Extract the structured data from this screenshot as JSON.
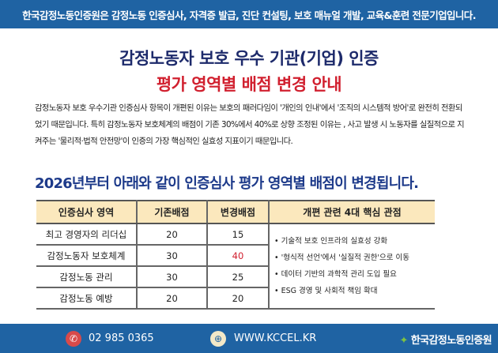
{
  "topbar": {
    "text": "한국감정노동인증원은 감정노동 인증심사, 자격증 발급, 진단 컨설팅, 보호 매뉴얼 개발, 교육&훈련 전문기업입니다."
  },
  "title": "감정노동자 보호 우수 기관(기업) 인증",
  "subtitle": "평가 영역별 배점 변경 안내",
  "paragraph": "감정노동자 보호 우수기관 인증심사 항목이 개편된 이유는 보호의 패러다임이 '개인의 인내'에서 '조직의 시스템적 방어'로 완전히 전환되었기 때문입니다. 특히 감정노동자 보호체계의 배점이 기존 30%에서 40%로 상향 조정된 이유는 , 사고 발생 시 노동자를 실질적으로 지켜주는 '물리적·법적 안전망'이 인증의 가장 핵심적인 실효성 지표이기 때문입니다.",
  "headline": "2026년부터 아래와 같이 인증심사 평가 영역별 배점이 변경됩니다.",
  "table": {
    "headers": [
      "인증심사 영역",
      "기존배점",
      "변경배점",
      "개편 관련 4대 핵심 관점"
    ],
    "rows": [
      {
        "area": "최고 경영자의 리더십",
        "old": "20",
        "new": "15"
      },
      {
        "area": "감정노동자 보호체계",
        "old": "30",
        "new": "40"
      },
      {
        "area": "감정노동 관리",
        "old": "30",
        "new": "25"
      },
      {
        "area": "감정노동 예방",
        "old": "20",
        "new": "20"
      }
    ],
    "points": [
      "기술적 보호 인프라의 실효성 강화",
      "'형식적 선언'에서 '실질적 권한'으로 이동",
      "데이터 기반의 과학적 관리 도입 필요",
      "ESG 경영 및 사회적 책임 확대"
    ],
    "highlight_color": "#d1202f"
  },
  "footer": {
    "phone": "02 985 0365",
    "website": "WWW.KCCEL.KR",
    "logo": "한국감정노동인증원",
    "phone_icon": "phone-icon",
    "web_icon": "globe-icon"
  }
}
